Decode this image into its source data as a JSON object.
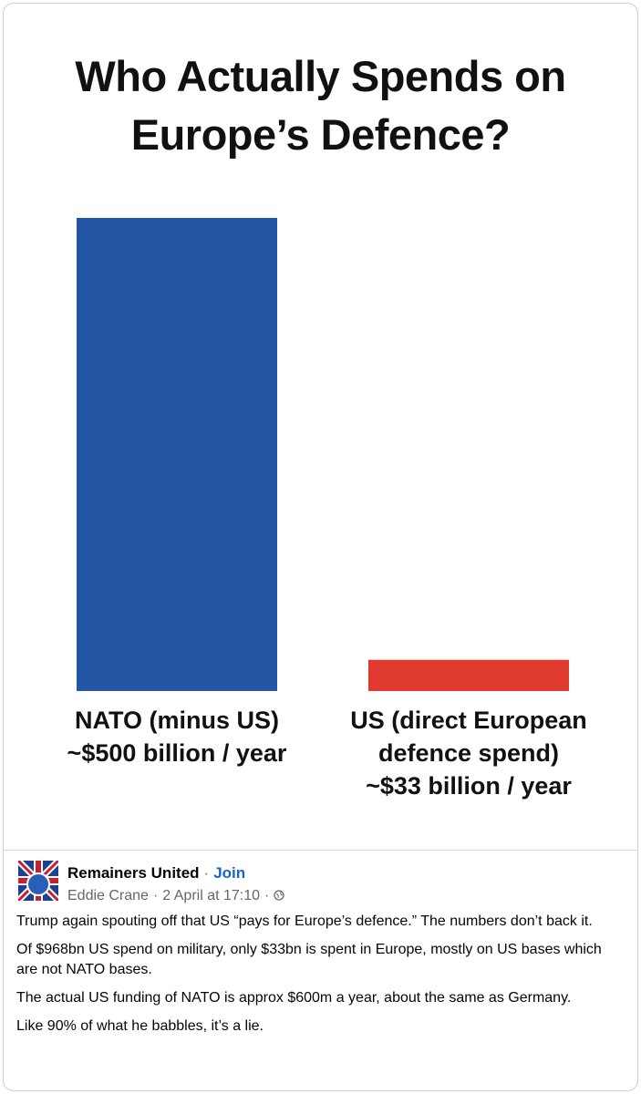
{
  "chart_data": {
    "type": "bar",
    "title": "Who Actually Spends on Europe’s Defence?",
    "categories": [
      "NATO (minus US)",
      "US (direct European defence spend)"
    ],
    "values": [
      500,
      33
    ],
    "value_labels": [
      "~$500 billion / year",
      "~$33 billion / year"
    ],
    "colors": [
      "#2356a5",
      "#e03a2f"
    ]
  },
  "post": {
    "group": "Remainers United",
    "join": "Join",
    "author": "Eddie Crane",
    "time": "2 April at 17:10",
    "paragraphs": [
      "Trump again spouting off that US “pays for Europe’s defence.” The numbers don’t back it.",
      "Of $968bn US spend on military, only $33bn is spent in Europe, mostly on US bases which are not NATO bases.",
      "The actual US funding of NATO is approx $600m a year, about the same as Germany.",
      "Like 90% of what he babbles, it’s a lie."
    ]
  }
}
